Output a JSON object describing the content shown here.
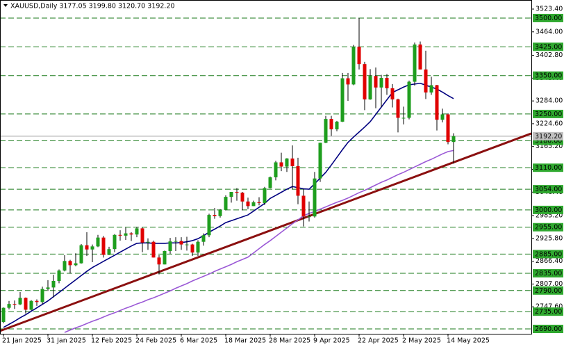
{
  "chart_data": {
    "type": "candlestick",
    "title": "XAUUSD,Daily  3177.05 3199.80 3120.70 3192.20",
    "x": [
      "21 Jan 2025",
      null,
      null,
      null,
      null,
      null,
      null,
      null,
      "31 Jan 2025",
      null,
      null,
      null,
      null,
      null,
      null,
      null,
      "12 Feb 2025",
      null,
      null,
      null,
      null,
      null,
      null,
      null,
      "24 Feb 2025",
      null,
      null,
      null,
      null,
      null,
      null,
      null,
      "6 Mar 2025",
      null,
      null,
      null,
      null,
      null,
      null,
      null,
      "18 Mar 2025",
      null,
      null,
      null,
      null,
      null,
      null,
      null,
      "28 Mar 2025",
      null,
      null,
      null,
      null,
      null,
      null,
      null,
      "9 Apr 2025",
      null,
      null,
      null,
      null,
      null,
      null,
      null,
      "22 Apr 2025",
      null,
      null,
      null,
      null,
      null,
      null,
      null,
      "2 May 2025",
      null,
      null,
      null,
      null,
      null,
      null,
      null,
      "14 May 2025",
      null
    ],
    "open": [
      2708,
      2745,
      2755,
      2754,
      2771,
      2740,
      2763,
      2760,
      2794,
      2798,
      2815,
      2842,
      2867,
      2856,
      2861,
      2908,
      2897,
      2905,
      2928,
      2883,
      2898,
      2935,
      2933,
      2939,
      2936,
      2952,
      2915,
      2917,
      2876,
      2858,
      2893,
      2918,
      2919,
      2910,
      2910,
      2889,
      2917,
      2934,
      2987,
      2984,
      3000,
      3034,
      3047,
      3045,
      3022,
      3010,
      3020,
      3018,
      3057,
      3085,
      3124,
      3113,
      3134,
      3114,
      3037,
      2983,
      2983,
      3082,
      3175,
      3237,
      3210,
      3230,
      3343,
      3327,
      3425,
      3380,
      3288,
      3349,
      3319,
      3344,
      3317,
      3288,
      3240,
      3240,
      3334,
      3431,
      3366,
      3306,
      3325,
      3235,
      3249,
      3177.05
    ],
    "high": [
      2746,
      2763,
      2764,
      2786,
      2772,
      2765,
      2767,
      2800,
      2817,
      2831,
      2845,
      2882,
      2870,
      2887,
      2911,
      2942,
      2910,
      2935,
      2932,
      2904,
      2937,
      2947,
      2954,
      2942,
      2956,
      2954,
      2926,
      2920,
      2882,
      2894,
      2927,
      2929,
      2929,
      2930,
      2912,
      2921,
      2939,
      2990,
      3005,
      3002,
      3038,
      3047,
      3057,
      3047,
      3032,
      3024,
      3033,
      3060,
      3087,
      3128,
      3149,
      3135,
      3168,
      3136,
      3055,
      3022,
      3099,
      3175,
      3245,
      3245,
      3232,
      3357,
      3357,
      3430,
      3500,
      3386,
      3367,
      3371,
      3352,
      3354,
      3328,
      3290,
      3269,
      3337,
      3436,
      3439,
      3415,
      3347,
      3326,
      3264,
      3252,
      3199.8
    ],
    "low": [
      2705,
      2741,
      2742,
      2752,
      2730,
      2738,
      2750,
      2755,
      2789,
      2772,
      2809,
      2840,
      2834,
      2853,
      2860,
      2880,
      2864,
      2903,
      2876,
      2882,
      2890,
      2920,
      2922,
      2919,
      2929,
      2890,
      2896,
      2876,
      2832,
      2858,
      2886,
      2893,
      2896,
      2894,
      2880,
      2880,
      2907,
      2929,
      2977,
      2980,
      2999,
      3019,
      3024,
      2999,
      3002,
      3010,
      3012,
      3013,
      3056,
      3077,
      3101,
      3099,
      3054,
      3015,
      2957,
      2970,
      2980,
      3073,
      3174,
      3193,
      3205,
      3229,
      3284,
      3325,
      3366,
      3260,
      3287,
      3265,
      3268,
      3300,
      3267,
      3202,
      3223,
      3236,
      3324,
      3366,
      3289,
      3300,
      3207,
      3228,
      3171,
      3120.7
    ],
    "close": [
      2745,
      2755,
      2754,
      2771,
      2740,
      2763,
      2760,
      2794,
      2798,
      2815,
      2842,
      2867,
      2856,
      2861,
      2908,
      2897,
      2905,
      2928,
      2883,
      2898,
      2935,
      2933,
      2939,
      2936,
      2952,
      2915,
      2917,
      2876,
      2858,
      2893,
      2918,
      2919,
      2910,
      2910,
      2889,
      2917,
      2934,
      2987,
      2984,
      3000,
      3034,
      3047,
      3045,
      3022,
      3010,
      3020,
      3018,
      3057,
      3085,
      3124,
      3113,
      3134,
      3114,
      3037,
      2983,
      2983,
      3082,
      3175,
      3237,
      3210,
      3230,
      3343,
      3327,
      3425,
      3380,
      3288,
      3349,
      3319,
      3344,
      3317,
      3288,
      3240,
      3240,
      3334,
      3431,
      3366,
      3306,
      3325,
      3235,
      3249,
      3177,
      3192.2
    ],
    "up_color": "#1e9e1e",
    "down_color": "#e00000",
    "moving_averages": [
      {
        "color": "#000080",
        "values": [
          2694,
          2702,
          2710,
          2719,
          2727,
          2736,
          2745,
          2754,
          2763,
          2774,
          2785,
          2796,
          2807,
          2818,
          2829,
          2840,
          2850,
          2858,
          2866,
          2874,
          2882,
          2890,
          2898,
          2906,
          2913,
          2914,
          2914,
          2913,
          2913,
          2913,
          2914,
          2914,
          2915,
          2917,
          2920,
          2925,
          2933,
          2942,
          2950,
          2958,
          2967,
          2972,
          2977,
          2982,
          2987,
          2997,
          3007,
          3017,
          3030,
          3038,
          3046,
          3054,
          3061,
          3058,
          3055,
          3054,
          3068,
          3083,
          3098,
          3117,
          3137,
          3157,
          3176,
          3190,
          3203,
          3216,
          3230,
          3249,
          3268,
          3287,
          3306,
          3313,
          3320,
          3326,
          3328,
          3330,
          3325,
          3320,
          3315,
          3307,
          3298,
          3290
        ]
      },
      {
        "color": "#9b59d6",
        "values": [
          null,
          null,
          null,
          null,
          null,
          null,
          null,
          null,
          null,
          null,
          null,
          2681,
          2687,
          2693,
          2698,
          2704,
          2710,
          2715,
          2721,
          2727,
          2732,
          2738,
          2744,
          2749,
          2755,
          2760,
          2766,
          2771,
          2777,
          2783,
          2789,
          2796,
          2802,
          2808,
          2815,
          2821,
          2827,
          2833,
          2840,
          2846,
          2852,
          2858,
          2865,
          2871,
          2877,
          2888,
          2899,
          2910,
          2920,
          2931,
          2942,
          2953,
          2964,
          2974,
          2985,
          2991,
          2996,
          3002,
          3008,
          3014,
          3020,
          3025,
          3031,
          3038,
          3045,
          3051,
          3058,
          3065,
          3072,
          3078,
          3085,
          3092,
          3098,
          3105,
          3112,
          3119,
          3126,
          3132,
          3139,
          3146,
          3152,
          3155
        ]
      }
    ],
    "trendline": {
      "color": "#8b1010",
      "x": [
        0,
        81
      ],
      "values": [
        2688,
        3124
      ]
    },
    "levels": {
      "color": "#1a7a1a",
      "values": [
        {
          "value": 3500,
          "label": "3500.00"
        },
        {
          "value": 3425,
          "label": "3425.00"
        },
        {
          "value": 3350,
          "label": "3350.00"
        },
        {
          "value": 3250,
          "label": "3250.00"
        },
        {
          "value": 3180,
          "label": "3180.00"
        },
        {
          "value": 3110,
          "label": "3110.00"
        },
        {
          "value": 3054,
          "label": "3054.00"
        },
        {
          "value": 3000,
          "label": "3000.00"
        },
        {
          "value": 2955,
          "label": "2955.00"
        },
        {
          "value": 2885,
          "label": "2885.00"
        },
        {
          "value": 2835,
          "label": "2835.00"
        },
        {
          "value": 2790,
          "label": "2790.00"
        },
        {
          "value": 2735,
          "label": "2735.00"
        },
        {
          "value": 2690,
          "label": "2690.00"
        }
      ]
    },
    "current_price": {
      "value": 3192.2,
      "label": "3192.20"
    },
    "ylim": [
      2677.3,
      3547
    ],
    "yticks": [
      {
        "value": 3523.4,
        "label": "3523.40"
      },
      {
        "value": 3464,
        "label": "3464.00"
      },
      {
        "value": 3402.8,
        "label": "3402.80"
      },
      {
        "value": 3343.4,
        "label": "3343.40"
      },
      {
        "value": 3284,
        "label": "3284.00"
      },
      {
        "value": 3224.6,
        "label": "3224.60"
      },
      {
        "value": 3165.2,
        "label": "3165.20"
      },
      {
        "value": 3105.8,
        "label": "3105.80"
      },
      {
        "value": 3046.4,
        "label": "3046.40"
      },
      {
        "value": 2985.2,
        "label": "2985.20"
      },
      {
        "value": 2925.8,
        "label": "2925.80"
      },
      {
        "value": 2866.4,
        "label": "2866.40"
      },
      {
        "value": 2807,
        "label": "2807.00"
      },
      {
        "value": 2747.6,
        "label": "2747.60"
      }
    ]
  }
}
